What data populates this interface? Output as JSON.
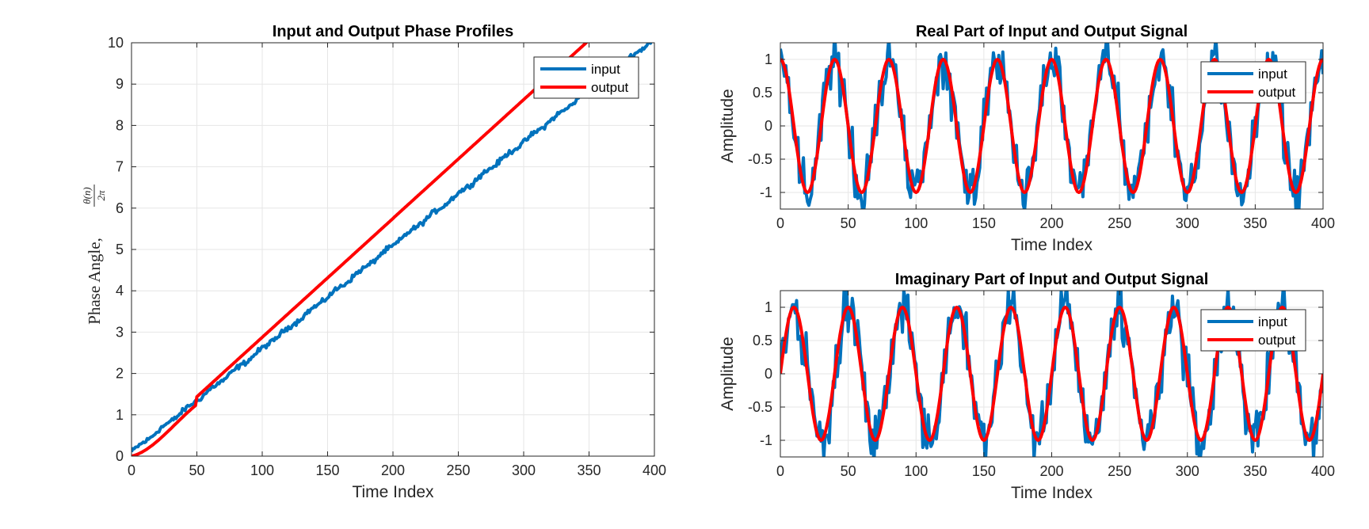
{
  "chart_data": [
    {
      "id": "phase",
      "type": "line",
      "title": "Input and Output Phase Profiles",
      "xlabel": "Time Index",
      "ylabel": "Phase Angle,",
      "ylabel_fraction": {
        "numerator": "θ(n)",
        "denominator": "2π"
      },
      "xlim": [
        0,
        400
      ],
      "ylim": [
        0,
        10
      ],
      "xticks": [
        0,
        50,
        100,
        150,
        200,
        250,
        300,
        350,
        400
      ],
      "yticks": [
        0,
        1,
        2,
        3,
        4,
        5,
        6,
        7,
        8,
        9,
        10
      ],
      "grid": true,
      "legend_position": "top-right",
      "series": [
        {
          "name": "input",
          "color": "#0072BD",
          "kind": "noisy-linear",
          "slope": 0.025,
          "offset": 0.1,
          "noise": 0.05
        },
        {
          "name": "output",
          "color": "#FF0000",
          "kind": "tracking",
          "start": 0,
          "end": 10,
          "settle_index": 50
        }
      ]
    },
    {
      "id": "real",
      "type": "line",
      "title": "Real Part of Input and Output Signal",
      "xlabel": "Time Index",
      "ylabel": "Amplitude",
      "xlim": [
        0,
        400
      ],
      "ylim": [
        -1.25,
        1.25
      ],
      "xticks": [
        0,
        50,
        100,
        150,
        200,
        250,
        300,
        350,
        400
      ],
      "yticks": [
        -1,
        -0.5,
        0,
        0.5,
        1
      ],
      "ytick_labels": [
        "-1",
        "-0.5",
        "0",
        "0.5",
        "1"
      ],
      "grid": true,
      "legend_position": "top-right",
      "series": [
        {
          "name": "input",
          "color": "#0072BD",
          "kind": "noisy-cos",
          "period": 40,
          "noise": 0.3
        },
        {
          "name": "output",
          "color": "#FF0000",
          "kind": "cos",
          "period": 40
        }
      ]
    },
    {
      "id": "imag",
      "type": "line",
      "title": "Imaginary Part of Input and Output Signal",
      "xlabel": "Time Index",
      "ylabel": "Amplitude",
      "xlim": [
        0,
        400
      ],
      "ylim": [
        -1.25,
        1.25
      ],
      "xticks": [
        0,
        50,
        100,
        150,
        200,
        250,
        300,
        350,
        400
      ],
      "yticks": [
        -1,
        -0.5,
        0,
        0.5,
        1
      ],
      "ytick_labels": [
        "-1",
        "-0.5",
        "0",
        "0.5",
        "1"
      ],
      "grid": true,
      "legend_position": "top-right",
      "series": [
        {
          "name": "input",
          "color": "#0072BD",
          "kind": "noisy-sin",
          "period": 40,
          "noise": 0.3
        },
        {
          "name": "output",
          "color": "#FF0000",
          "kind": "sin",
          "period": 40
        }
      ]
    }
  ]
}
